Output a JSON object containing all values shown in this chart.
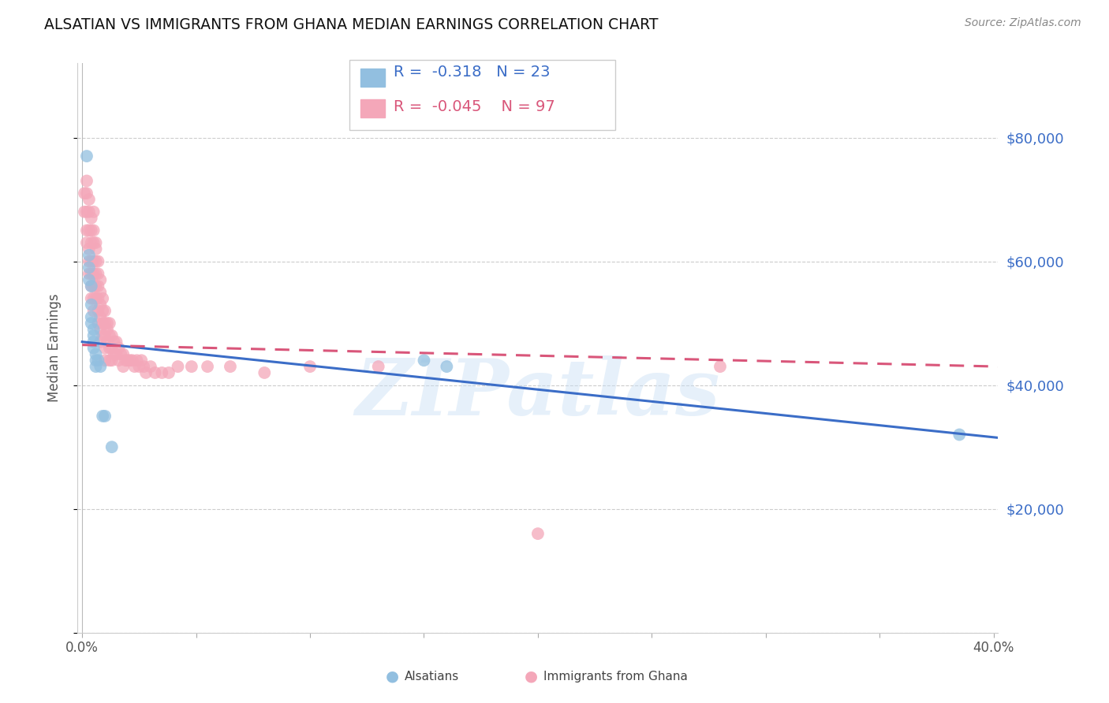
{
  "title": "ALSATIAN VS IMMIGRANTS FROM GHANA MEDIAN EARNINGS CORRELATION CHART",
  "source": "Source: ZipAtlas.com",
  "ylabel": "Median Earnings",
  "xlim": [
    -0.002,
    0.402
  ],
  "ylim": [
    0,
    92000
  ],
  "yticks": [
    0,
    20000,
    40000,
    60000,
    80000
  ],
  "xtick_positions": [
    0.0,
    0.05,
    0.1,
    0.15,
    0.2,
    0.25,
    0.3,
    0.35,
    0.4
  ],
  "background_color": "#ffffff",
  "grid_color": "#cccccc",
  "blue_color": "#92bfe0",
  "pink_color": "#f4a7b9",
  "blue_line_color": "#3b6dc7",
  "pink_line_color": "#d9567a",
  "legend_blue_R": "-0.318",
  "legend_blue_N": "23",
  "legend_pink_R": "-0.045",
  "legend_pink_N": "97",
  "watermark": "ZIPatlas",
  "blue_line_x0": 0.0,
  "blue_line_y0": 47000,
  "blue_line_x1": 0.402,
  "blue_line_y1": 31500,
  "pink_line_x0": 0.0,
  "pink_line_y0": 46500,
  "pink_line_x1": 0.402,
  "pink_line_y1": 43000,
  "alsatian_x": [
    0.002,
    0.003,
    0.003,
    0.003,
    0.004,
    0.004,
    0.004,
    0.004,
    0.005,
    0.005,
    0.005,
    0.005,
    0.006,
    0.006,
    0.006,
    0.007,
    0.008,
    0.009,
    0.01,
    0.013,
    0.15,
    0.16,
    0.385
  ],
  "alsatian_y": [
    77000,
    61000,
    59000,
    57000,
    56000,
    53000,
    51000,
    50000,
    49000,
    48000,
    47000,
    46000,
    45000,
    44000,
    43000,
    44000,
    43000,
    35000,
    35000,
    30000,
    44000,
    43000,
    32000
  ],
  "ghana_x": [
    0.001,
    0.001,
    0.002,
    0.002,
    0.002,
    0.002,
    0.002,
    0.003,
    0.003,
    0.003,
    0.003,
    0.003,
    0.003,
    0.004,
    0.004,
    0.004,
    0.004,
    0.004,
    0.004,
    0.004,
    0.005,
    0.005,
    0.005,
    0.005,
    0.005,
    0.005,
    0.005,
    0.005,
    0.006,
    0.006,
    0.006,
    0.006,
    0.006,
    0.006,
    0.007,
    0.007,
    0.007,
    0.007,
    0.007,
    0.007,
    0.008,
    0.008,
    0.008,
    0.008,
    0.008,
    0.008,
    0.009,
    0.009,
    0.009,
    0.009,
    0.01,
    0.01,
    0.01,
    0.01,
    0.01,
    0.011,
    0.011,
    0.011,
    0.012,
    0.012,
    0.012,
    0.012,
    0.013,
    0.013,
    0.013,
    0.014,
    0.014,
    0.015,
    0.015,
    0.016,
    0.016,
    0.017,
    0.018,
    0.018,
    0.019,
    0.02,
    0.021,
    0.022,
    0.023,
    0.024,
    0.025,
    0.026,
    0.027,
    0.028,
    0.03,
    0.032,
    0.035,
    0.038,
    0.042,
    0.048,
    0.055,
    0.065,
    0.08,
    0.1,
    0.13,
    0.28,
    0.2
  ],
  "ghana_y": [
    71000,
    68000,
    73000,
    71000,
    68000,
    65000,
    63000,
    70000,
    68000,
    65000,
    62000,
    60000,
    58000,
    67000,
    65000,
    63000,
    60000,
    58000,
    56000,
    54000,
    68000,
    65000,
    63000,
    60000,
    58000,
    56000,
    54000,
    52000,
    63000,
    62000,
    60000,
    58000,
    56000,
    54000,
    60000,
    58000,
    56000,
    54000,
    52000,
    50000,
    57000,
    55000,
    53000,
    51000,
    49000,
    47000,
    54000,
    52000,
    50000,
    48000,
    52000,
    50000,
    48000,
    46000,
    44000,
    50000,
    49000,
    47000,
    50000,
    48000,
    46000,
    44000,
    48000,
    46000,
    44000,
    47000,
    45000,
    47000,
    45000,
    46000,
    44000,
    45000,
    45000,
    43000,
    44000,
    44000,
    44000,
    44000,
    43000,
    44000,
    43000,
    44000,
    43000,
    42000,
    43000,
    42000,
    42000,
    42000,
    43000,
    43000,
    43000,
    43000,
    42000,
    43000,
    43000,
    43000,
    16000
  ]
}
